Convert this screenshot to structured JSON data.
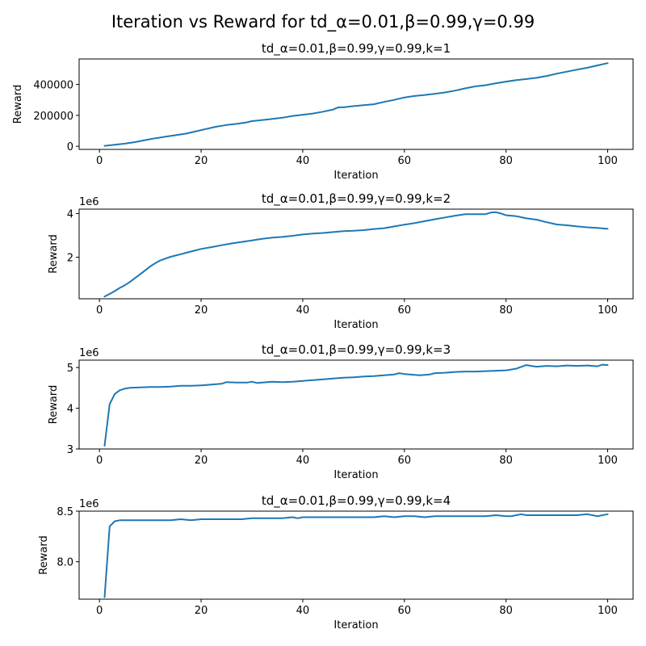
{
  "figure": {
    "suptitle": "Iteration vs Reward for td_α=0.01,β=0.99,γ=0.99"
  },
  "chart_data": [
    {
      "type": "line",
      "title": "td_α=0.01,β=0.99,γ=0.99,k=1",
      "xlabel": "Iteration",
      "ylabel": "Reward",
      "offset_label": "",
      "xlim": [
        -4,
        105
      ],
      "ylim": [
        -20000,
        565000
      ],
      "xticks": [
        0,
        20,
        40,
        60,
        80,
        100
      ],
      "xtick_labels": [
        "0",
        "20",
        "40",
        "60",
        "80",
        "100"
      ],
      "yticks": [
        0,
        200000,
        400000
      ],
      "ytick_labels": [
        "0",
        "200000",
        "400000"
      ],
      "grid": false,
      "series": [
        {
          "color": "#1f77b4",
          "x": [
            1,
            3,
            5,
            7,
            9,
            11,
            13,
            15,
            17,
            19,
            21,
            23,
            25,
            27,
            29,
            30,
            33,
            36,
            38,
            40,
            42,
            44,
            46,
            47,
            48,
            50,
            52,
            54,
            56,
            58,
            60,
            62,
            64,
            66,
            68,
            70,
            72,
            74,
            76,
            78,
            80,
            82,
            84,
            86,
            88,
            90,
            92,
            94,
            96,
            98,
            100
          ],
          "values": [
            3000,
            10000,
            17000,
            27000,
            40000,
            52000,
            62000,
            72000,
            82000,
            97000,
            112000,
            127000,
            138000,
            145000,
            155000,
            163000,
            173000,
            185000,
            196000,
            204000,
            212000,
            224000,
            238000,
            252000,
            252000,
            260000,
            266000,
            272000,
            287000,
            300000,
            316000,
            325000,
            332000,
            340000,
            348000,
            360000,
            375000,
            388000,
            395000,
            408000,
            418000,
            428000,
            435000,
            443000,
            455000,
            470000,
            483000,
            496000,
            508000,
            523000,
            538000
          ]
        }
      ]
    },
    {
      "type": "line",
      "title": "td_α=0.01,β=0.99,γ=0.99,k=2",
      "xlabel": "Iteration",
      "ylabel": "Reward",
      "offset_label": "1e6",
      "xlim": [
        -4,
        105
      ],
      "ylim": [
        0.1,
        4.2
      ],
      "xticks": [
        0,
        20,
        40,
        60,
        80,
        100
      ],
      "xtick_labels": [
        "0",
        "20",
        "40",
        "60",
        "80",
        "100"
      ],
      "yticks": [
        2,
        4
      ],
      "ytick_labels": [
        "2",
        "4"
      ],
      "grid": false,
      "series": [
        {
          "color": "#1f77b4",
          "x": [
            1,
            2,
            3,
            4,
            5,
            6,
            7,
            8,
            9,
            10,
            11,
            12,
            13,
            14,
            15,
            16,
            17,
            18,
            19,
            20,
            21,
            22,
            24,
            26,
            28,
            30,
            32,
            34,
            36,
            38,
            40,
            42,
            44,
            46,
            48,
            50,
            52,
            54,
            56,
            58,
            60,
            62,
            64,
            66,
            68,
            70,
            72,
            74,
            76,
            77,
            78,
            79,
            80,
            81,
            82,
            84,
            86,
            88,
            90,
            92,
            94,
            96,
            98,
            100
          ],
          "values": [
            0.2,
            0.32,
            0.45,
            0.6,
            0.72,
            0.87,
            1.05,
            1.22,
            1.4,
            1.58,
            1.73,
            1.86,
            1.94,
            2.02,
            2.08,
            2.14,
            2.2,
            2.26,
            2.32,
            2.38,
            2.42,
            2.46,
            2.55,
            2.63,
            2.7,
            2.77,
            2.84,
            2.9,
            2.93,
            2.98,
            3.04,
            3.08,
            3.11,
            3.15,
            3.19,
            3.21,
            3.24,
            3.29,
            3.33,
            3.41,
            3.49,
            3.56,
            3.65,
            3.74,
            3.82,
            3.9,
            3.97,
            3.97,
            3.97,
            4.04,
            4.06,
            4.0,
            3.92,
            3.9,
            3.88,
            3.78,
            3.72,
            3.6,
            3.5,
            3.46,
            3.41,
            3.37,
            3.34,
            3.3
          ]
        }
      ]
    },
    {
      "type": "line",
      "title": "td_α=0.01,β=0.99,γ=0.99,k=3",
      "xlabel": "Iteration",
      "ylabel": "Reward",
      "offset_label": "1e6",
      "xlim": [
        -4,
        105
      ],
      "ylim": [
        3.0,
        5.18
      ],
      "xticks": [
        0,
        20,
        40,
        60,
        80,
        100
      ],
      "xtick_labels": [
        "0",
        "20",
        "40",
        "60",
        "80",
        "100"
      ],
      "yticks": [
        3,
        4,
        5
      ],
      "ytick_labels": [
        "3",
        "4",
        "5"
      ],
      "grid": false,
      "series": [
        {
          "color": "#1f77b4",
          "x": [
            1,
            2,
            3,
            4,
            5,
            6,
            8,
            10,
            12,
            14,
            16,
            18,
            20,
            22,
            24,
            25,
            27,
            29,
            30,
            31,
            33,
            34,
            36,
            38,
            40,
            42,
            44,
            46,
            48,
            50,
            52,
            54,
            56,
            58,
            59,
            60,
            62,
            63,
            65,
            66,
            68,
            70,
            72,
            74,
            76,
            78,
            80,
            82,
            84,
            86,
            88,
            90,
            92,
            94,
            96,
            98,
            99,
            100
          ],
          "values": [
            3.08,
            4.1,
            4.35,
            4.44,
            4.48,
            4.5,
            4.51,
            4.52,
            4.52,
            4.53,
            4.55,
            4.55,
            4.56,
            4.58,
            4.6,
            4.64,
            4.63,
            4.63,
            4.65,
            4.62,
            4.64,
            4.65,
            4.64,
            4.65,
            4.67,
            4.69,
            4.71,
            4.73,
            4.75,
            4.76,
            4.78,
            4.79,
            4.81,
            4.83,
            4.86,
            4.84,
            4.82,
            4.81,
            4.83,
            4.86,
            4.87,
            4.89,
            4.9,
            4.9,
            4.91,
            4.92,
            4.93,
            4.97,
            5.06,
            5.02,
            5.04,
            5.03,
            5.05,
            5.04,
            5.05,
            5.03,
            5.07,
            5.06
          ]
        }
      ]
    },
    {
      "type": "line",
      "title": "td_α=0.01,β=0.99,γ=0.99,k=4",
      "xlabel": "Iteration",
      "ylabel": "Reward",
      "offset_label": "1e6",
      "xlim": [
        -4,
        105
      ],
      "ylim": [
        7.63,
        8.5
      ],
      "xticks": [
        0,
        20,
        40,
        60,
        80,
        100
      ],
      "xtick_labels": [
        "0",
        "20",
        "40",
        "60",
        "80",
        "100"
      ],
      "yticks": [
        8.0,
        8.5
      ],
      "ytick_labels": [
        "8.0",
        "8.5"
      ],
      "grid": false,
      "series": [
        {
          "color": "#1f77b4",
          "x": [
            1,
            2,
            3,
            4,
            6,
            8,
            10,
            12,
            14,
            16,
            18,
            20,
            22,
            24,
            26,
            28,
            30,
            32,
            34,
            36,
            38,
            39,
            40,
            42,
            44,
            46,
            48,
            50,
            52,
            54,
            56,
            58,
            60,
            62,
            64,
            66,
            68,
            70,
            72,
            74,
            76,
            78,
            80,
            81,
            82,
            83,
            84,
            86,
            88,
            90,
            92,
            94,
            96,
            97,
            98,
            99,
            100
          ],
          "values": [
            7.65,
            8.35,
            8.4,
            8.41,
            8.41,
            8.41,
            8.41,
            8.41,
            8.41,
            8.42,
            8.41,
            8.42,
            8.42,
            8.42,
            8.42,
            8.42,
            8.43,
            8.43,
            8.43,
            8.43,
            8.44,
            8.43,
            8.44,
            8.44,
            8.44,
            8.44,
            8.44,
            8.44,
            8.44,
            8.44,
            8.45,
            8.44,
            8.45,
            8.45,
            8.44,
            8.45,
            8.45,
            8.45,
            8.45,
            8.45,
            8.45,
            8.46,
            8.45,
            8.45,
            8.46,
            8.47,
            8.46,
            8.46,
            8.46,
            8.46,
            8.46,
            8.46,
            8.47,
            8.46,
            8.45,
            8.46,
            8.47
          ]
        }
      ]
    }
  ]
}
